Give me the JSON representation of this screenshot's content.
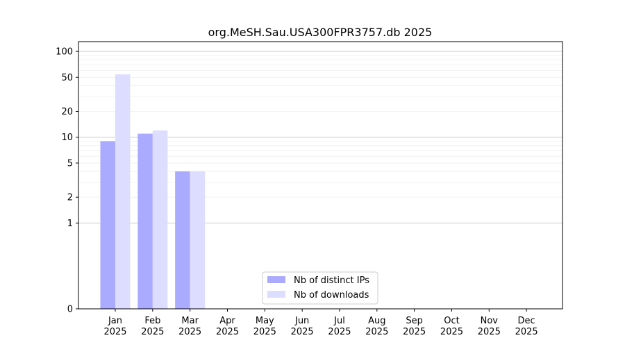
{
  "chart_data": {
    "type": "bar",
    "title": "org.MeSH.Sau.USA300FPR3757.db 2025",
    "xlabel": "",
    "ylabel": "",
    "yscale": "symlog",
    "ylim": [
      0,
      130
    ],
    "yticks": [
      0,
      1,
      2,
      5,
      10,
      20,
      50,
      100
    ],
    "ytick_labels": [
      "0",
      "1",
      "2",
      "5",
      "10",
      "20",
      "50",
      "100"
    ],
    "grid": "horizontal",
    "legend_position": "bottom-center",
    "categories": [
      {
        "month": "Jan",
        "year": "2025"
      },
      {
        "month": "Feb",
        "year": "2025"
      },
      {
        "month": "Mar",
        "year": "2025"
      },
      {
        "month": "Apr",
        "year": "2025"
      },
      {
        "month": "May",
        "year": "2025"
      },
      {
        "month": "Jun",
        "year": "2025"
      },
      {
        "month": "Jul",
        "year": "2025"
      },
      {
        "month": "Aug",
        "year": "2025"
      },
      {
        "month": "Sep",
        "year": "2025"
      },
      {
        "month": "Oct",
        "year": "2025"
      },
      {
        "month": "Nov",
        "year": "2025"
      },
      {
        "month": "Dec",
        "year": "2025"
      }
    ],
    "series": [
      {
        "name": "Nb of distinct IPs",
        "color": "#aaaaff",
        "values": [
          9,
          11,
          4,
          0,
          0,
          0,
          0,
          0,
          0,
          0,
          0,
          0
        ]
      },
      {
        "name": "Nb of downloads",
        "color": "#ddddff",
        "values": [
          54,
          12,
          4,
          0,
          0,
          0,
          0,
          0,
          0,
          0,
          0,
          0
        ]
      }
    ]
  }
}
